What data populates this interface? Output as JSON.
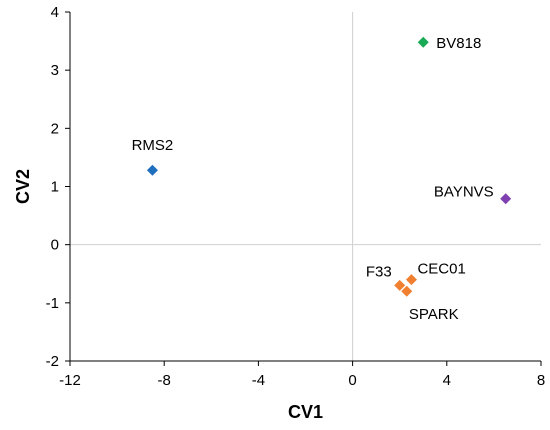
{
  "chart_data": {
    "type": "scatter",
    "title": "",
    "xlabel": "CV1",
    "ylabel": "CV2",
    "xlim": [
      -12,
      8
    ],
    "ylim": [
      -2,
      4
    ],
    "x_ticks": [
      -12,
      -8,
      -4,
      0,
      4,
      8
    ],
    "y_ticks": [
      -2,
      -1,
      0,
      1,
      2,
      3,
      4
    ],
    "x_tick_labels": [
      "-12",
      "-8",
      "-4",
      "0",
      "4",
      "8"
    ],
    "y_tick_labels": [
      "-2",
      "-1",
      "0",
      "1",
      "2",
      "3",
      "4"
    ],
    "grid": false,
    "zero_lines": true,
    "marker": "diamond",
    "colors": {
      "blue": "#1f6fbf",
      "green": "#1aaa55",
      "purple": "#8040b0",
      "orange": "#f08030",
      "zero_line": "#d0d0d0",
      "axis": "#000000"
    },
    "points": [
      {
        "x": -8.5,
        "y": 1.28,
        "color": "#1f6fbf"
      },
      {
        "x": 3.0,
        "y": 3.48,
        "color": "#1aaa55"
      },
      {
        "x": 6.5,
        "y": 0.79,
        "color": "#8040b0"
      },
      {
        "x": 2.0,
        "y": -0.7,
        "color": "#f08030"
      },
      {
        "x": 2.5,
        "y": -0.6,
        "color": "#f08030"
      },
      {
        "x": 2.3,
        "y": -0.8,
        "color": "#f08030"
      }
    ],
    "annotations": [
      {
        "text": "RMS2",
        "x": -8.5,
        "y": 1.28,
        "position": "above"
      },
      {
        "text": "BV818",
        "x": 3.0,
        "y": 3.48,
        "position": "right"
      },
      {
        "text": "BAYNVS",
        "x": 6.5,
        "y": 0.79,
        "position": "left"
      },
      {
        "text": "F33",
        "x": 2.0,
        "y": -0.7,
        "position": "upper-left"
      },
      {
        "text": "CEC01",
        "x": 2.5,
        "y": -0.6,
        "position": "upper-right"
      },
      {
        "text": "SPARK",
        "x": 2.3,
        "y": -0.8,
        "position": "below"
      }
    ]
  }
}
